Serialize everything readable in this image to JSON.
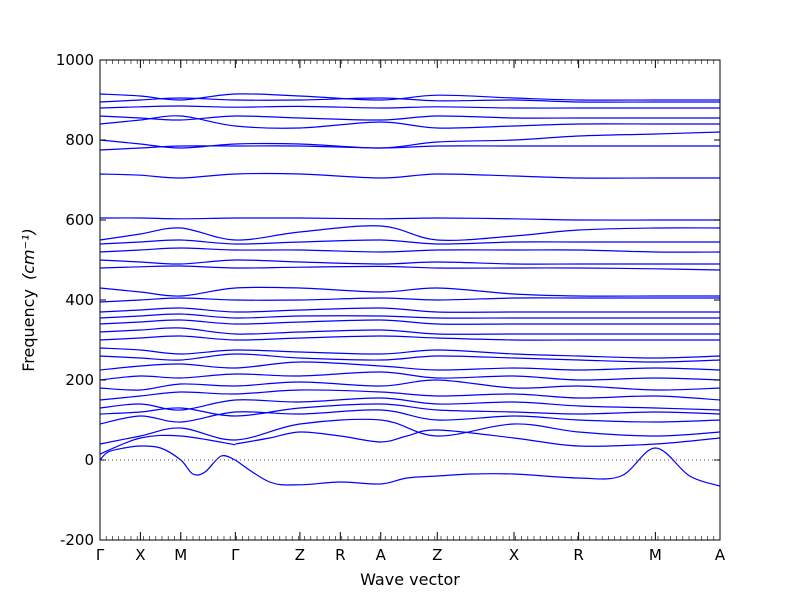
{
  "chart_data": {
    "type": "line",
    "title": "",
    "xlabel": "Wave vector",
    "ylabel": "Frequency",
    "ylabel_unit": "(cm⁻¹)",
    "ylim": [
      -200,
      1000
    ],
    "yticks": [
      -200,
      0,
      200,
      400,
      600,
      800,
      1000
    ],
    "zero_line": true,
    "grid": false,
    "line_color": "#0000ff",
    "path_points": [
      "Γ",
      "X",
      "M",
      "Γ",
      "Z",
      "R",
      "A",
      "Z",
      "X",
      "R",
      "M",
      "A"
    ],
    "path_positions": [
      0,
      1,
      2,
      3.35,
      4.95,
      5.95,
      6.95,
      8.35,
      10.25,
      11.85,
      13.75,
      15.35
    ],
    "path_end": 15.35,
    "series": [
      {
        "x": [
          0,
          0.2,
          0.6,
          1,
          1.5,
          2,
          2.3,
          2.6,
          3.0,
          3.35
        ],
        "y": [
          0,
          20,
          30,
          35,
          30,
          0,
          -35,
          -30,
          10,
          0
        ]
      },
      {
        "x": [
          0,
          1,
          2,
          3.35
        ],
        "y": [
          15,
          55,
          60,
          38
        ]
      },
      {
        "x": [
          3.35,
          4.2,
          4.95,
          5.95,
          6.95,
          7.6,
          8.35,
          9.2,
          10.25,
          11.85,
          12.9,
          13.75,
          14.6,
          15.35
        ],
        "y": [
          0,
          -55,
          -62,
          -55,
          -60,
          -45,
          -40,
          -35,
          -35,
          -45,
          -40,
          30,
          -40,
          -65
        ]
      },
      {
        "x": [
          3.35,
          4.2,
          4.95,
          5.95,
          6.95,
          7.6,
          8.35,
          10.25,
          11.85,
          13.75,
          15.35
        ],
        "y": [
          40,
          55,
          70,
          60,
          45,
          60,
          75,
          55,
          35,
          40,
          55
        ]
      },
      {
        "x": [
          0,
          1,
          2,
          3.35,
          4.95,
          6.95,
          8.35,
          10.25,
          11.85,
          13.75,
          15.35
        ],
        "y": [
          40,
          60,
          80,
          50,
          90,
          100,
          60,
          90,
          70,
          60,
          70
        ]
      },
      {
        "x": [
          0,
          1,
          2,
          3.35,
          4.95,
          6.95,
          8.35,
          10.25,
          11.85,
          13.75,
          15.35
        ],
        "y": [
          90,
          110,
          95,
          120,
          115,
          125,
          100,
          110,
          100,
          95,
          100
        ]
      },
      {
        "x": [
          0,
          1,
          2,
          3.35,
          4.95,
          6.95,
          8.35,
          10.25,
          11.85,
          13.75,
          15.35
        ],
        "y": [
          115,
          120,
          130,
          110,
          130,
          140,
          125,
          120,
          115,
          120,
          115
        ]
      },
      {
        "x": [
          0,
          1,
          2,
          3.35,
          4.95,
          6.95,
          8.35,
          10.25,
          11.85,
          13.75,
          15.35
        ],
        "y": [
          130,
          140,
          125,
          150,
          145,
          155,
          140,
          145,
          135,
          130,
          125
        ]
      },
      {
        "x": [
          0,
          1,
          2,
          3.35,
          4.95,
          6.95,
          8.35,
          10.25,
          11.85,
          13.75,
          15.35
        ],
        "y": [
          150,
          160,
          170,
          165,
          175,
          170,
          160,
          165,
          155,
          160,
          150
        ]
      },
      {
        "x": [
          0,
          1,
          2,
          3.35,
          4.95,
          6.95,
          8.35,
          10.25,
          11.85,
          13.75,
          15.35
        ],
        "y": [
          180,
          175,
          190,
          185,
          195,
          185,
          200,
          180,
          185,
          175,
          180
        ]
      },
      {
        "x": [
          0,
          1,
          2,
          3.35,
          4.95,
          6.95,
          8.35,
          10.25,
          11.85,
          13.75,
          15.35
        ],
        "y": [
          200,
          210,
          205,
          215,
          210,
          220,
          205,
          210,
          200,
          205,
          200
        ]
      },
      {
        "x": [
          0,
          1,
          2,
          3.35,
          4.95,
          6.95,
          8.35,
          10.25,
          11.85,
          13.75,
          15.35
        ],
        "y": [
          225,
          235,
          240,
          230,
          245,
          235,
          225,
          230,
          225,
          230,
          225
        ]
      },
      {
        "x": [
          0,
          1,
          2,
          3.35,
          4.95,
          6.95,
          8.35,
          10.25,
          11.85,
          13.75,
          15.35
        ],
        "y": [
          260,
          255,
          250,
          265,
          255,
          250,
          260,
          255,
          250,
          245,
          250
        ]
      },
      {
        "x": [
          0,
          1,
          2,
          3.35,
          4.95,
          6.95,
          8.35,
          10.25,
          11.85,
          13.75,
          15.35
        ],
        "y": [
          280,
          275,
          265,
          275,
          270,
          265,
          275,
          265,
          260,
          255,
          260
        ]
      },
      {
        "x": [
          0,
          1,
          2,
          3.35,
          4.95,
          6.95,
          8.35,
          10.25,
          11.85,
          13.75,
          15.35
        ],
        "y": [
          300,
          305,
          310,
          300,
          305,
          310,
          305,
          300,
          300,
          300,
          300
        ]
      },
      {
        "x": [
          0,
          1,
          2,
          3.35,
          4.95,
          6.95,
          8.35,
          10.25,
          11.85,
          13.75,
          15.35
        ],
        "y": [
          320,
          325,
          330,
          315,
          320,
          325,
          315,
          315,
          315,
          315,
          315
        ]
      },
      {
        "x": [
          0,
          1,
          2,
          3.35,
          4.95,
          6.95,
          8.35,
          10.25,
          11.85,
          13.75,
          15.35
        ],
        "y": [
          340,
          345,
          350,
          340,
          345,
          350,
          340,
          340,
          340,
          340,
          340
        ]
      },
      {
        "x": [
          0,
          1,
          2,
          3.35,
          4.95,
          6.95,
          8.35,
          10.25,
          11.85,
          13.75,
          15.35
        ],
        "y": [
          355,
          360,
          365,
          355,
          360,
          360,
          355,
          355,
          355,
          355,
          355
        ]
      },
      {
        "x": [
          0,
          1,
          2,
          3.35,
          4.95,
          6.95,
          8.35,
          10.25,
          11.85,
          13.75,
          15.35
        ],
        "y": [
          370,
          375,
          380,
          370,
          375,
          380,
          370,
          370,
          370,
          370,
          370
        ]
      },
      {
        "x": [
          0,
          1,
          2,
          3.35,
          4.95,
          6.95,
          8.35,
          10.25,
          11.85,
          13.75,
          15.35
        ],
        "y": [
          395,
          400,
          405,
          400,
          400,
          405,
          400,
          405,
          405,
          405,
          405
        ]
      },
      {
        "x": [
          0,
          1,
          2,
          3.35,
          4.95,
          6.95,
          8.35,
          10.25,
          11.85,
          13.75,
          15.35
        ],
        "y": [
          430,
          420,
          410,
          430,
          430,
          420,
          430,
          415,
          410,
          410,
          410
        ]
      },
      {
        "x": [
          0,
          1,
          2,
          3.35,
          4.95,
          6.95,
          8.35,
          10.25,
          11.85,
          13.75,
          15.35
        ],
        "y": [
          480,
          483,
          485,
          480,
          482,
          484,
          480,
          480,
          480,
          478,
          475
        ]
      },
      {
        "x": [
          0,
          1,
          2,
          3.35,
          4.95,
          6.95,
          8.35,
          10.25,
          11.85,
          13.75,
          15.35
        ],
        "y": [
          500,
          495,
          490,
          500,
          495,
          490,
          495,
          490,
          490,
          490,
          490
        ]
      },
      {
        "x": [
          0,
          1,
          2,
          3.35,
          4.95,
          6.95,
          8.35,
          10.25,
          11.85,
          13.75,
          15.35
        ],
        "y": [
          520,
          525,
          530,
          525,
          525,
          520,
          525,
          525,
          525,
          520,
          520
        ]
      },
      {
        "x": [
          0,
          1,
          2,
          3.35,
          4.95,
          6.95,
          8.35,
          10.25,
          11.85,
          13.75,
          15.35
        ],
        "y": [
          540,
          545,
          550,
          540,
          545,
          550,
          540,
          545,
          545,
          545,
          545
        ]
      },
      {
        "x": [
          0,
          1,
          2,
          3.35,
          4.95,
          6.95,
          8.35,
          10.25,
          11.85,
          13.75,
          15.35
        ],
        "y": [
          550,
          565,
          580,
          550,
          570,
          585,
          550,
          560,
          575,
          580,
          580
        ]
      },
      {
        "x": [
          0,
          1,
          2,
          3.35,
          4.95,
          6.95,
          8.35,
          10.25,
          11.85,
          13.75,
          15.35
        ],
        "y": [
          605,
          605,
          603,
          605,
          605,
          603,
          605,
          603,
          600,
          600,
          600
        ]
      },
      {
        "x": [
          0,
          1,
          2,
          3.35,
          4.95,
          6.95,
          8.35,
          10.25,
          11.85,
          13.75,
          15.35
        ],
        "y": [
          715,
          712,
          705,
          715,
          715,
          705,
          715,
          710,
          705,
          705,
          705
        ]
      },
      {
        "x": [
          0,
          1,
          2,
          3.35,
          4.95,
          6.95,
          8.35,
          10.25,
          11.85,
          13.75,
          15.35
        ],
        "y": [
          775,
          780,
          785,
          785,
          785,
          780,
          785,
          785,
          785,
          785,
          785
        ]
      },
      {
        "x": [
          0,
          1,
          2,
          3.35,
          4.95,
          6.95,
          8.35,
          10.25,
          11.85,
          13.75,
          15.35
        ],
        "y": [
          800,
          790,
          780,
          790,
          790,
          780,
          795,
          800,
          810,
          815,
          820
        ]
      },
      {
        "x": [
          0,
          1,
          2,
          3.35,
          4.95,
          6.95,
          8.35,
          10.25,
          11.85,
          13.75,
          15.35
        ],
        "y": [
          840,
          850,
          860,
          835,
          830,
          845,
          830,
          835,
          840,
          840,
          840
        ]
      },
      {
        "x": [
          0,
          1,
          2,
          3.35,
          4.95,
          6.95,
          8.35,
          10.25,
          11.85,
          13.75,
          15.35
        ],
        "y": [
          860,
          855,
          850,
          860,
          855,
          850,
          860,
          855,
          855,
          855,
          855
        ]
      },
      {
        "x": [
          0,
          1,
          2,
          3.35,
          4.95,
          6.95,
          8.35,
          10.25,
          11.85,
          13.75,
          15.35
        ],
        "y": [
          880,
          883,
          885,
          882,
          884,
          880,
          883,
          880,
          880,
          880,
          880
        ]
      },
      {
        "x": [
          0,
          1,
          2,
          3.35,
          4.95,
          6.95,
          8.35,
          10.25,
          11.85,
          13.75,
          15.35
        ],
        "y": [
          895,
          900,
          905,
          900,
          900,
          905,
          898,
          900,
          895,
          895,
          895
        ]
      },
      {
        "x": [
          0,
          1,
          2,
          3.35,
          4.95,
          6.95,
          8.35,
          10.25,
          11.85,
          13.75,
          15.35
        ],
        "y": [
          915,
          910,
          900,
          915,
          910,
          900,
          912,
          905,
          900,
          900,
          900
        ]
      }
    ]
  }
}
